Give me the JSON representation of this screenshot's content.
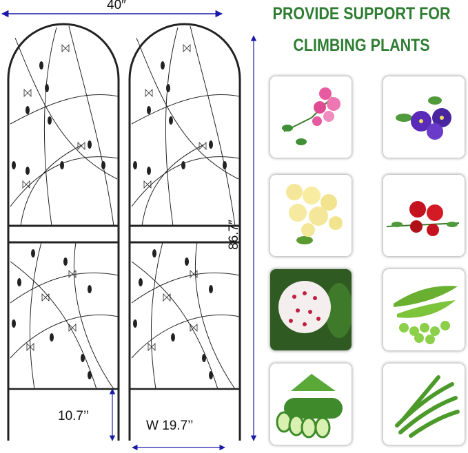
{
  "headline": {
    "line1": "PROVIDE SUPPORT FOR",
    "line2": "CLIMBING PLANTS",
    "color": "#2e7d32"
  },
  "dimensions": {
    "total_width": "40″",
    "height": "86.7″",
    "leg_length": "10.7’’",
    "panel_width": "W 19.7’’",
    "arrow_color": "#1a1aa8"
  },
  "plants": [
    {
      "name": "pink-rose",
      "color": "#e85aa0"
    },
    {
      "name": "purple-clematis",
      "color": "#5a2ab8"
    },
    {
      "name": "yellow-rose",
      "color": "#f4e79a"
    },
    {
      "name": "red-flowers",
      "color": "#c4121e"
    },
    {
      "name": "hoya",
      "color": "#f4eeee"
    },
    {
      "name": "peas",
      "color": "#7cc43a"
    },
    {
      "name": "cucumber",
      "color": "#3f8a2a"
    },
    {
      "name": "green-beans",
      "color": "#4c9a2a"
    }
  ]
}
